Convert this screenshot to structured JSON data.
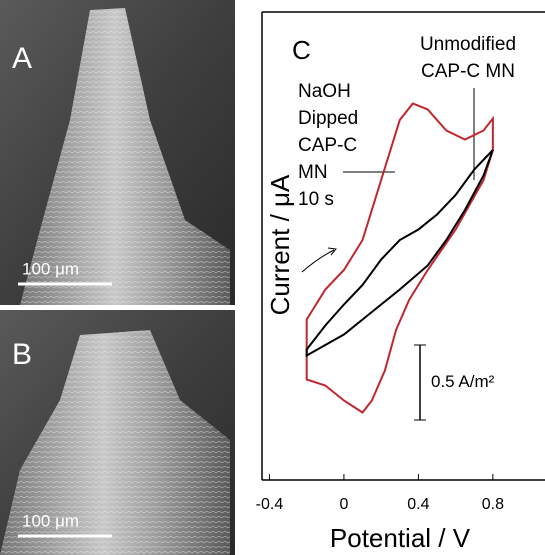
{
  "panels": [
    {
      "label": "A",
      "scale_bar": "100 μm"
    },
    {
      "label": "B",
      "scale_bar": "100 μm"
    }
  ],
  "chart_data": {
    "type": "line",
    "panel_label": "C",
    "xlabel": "Potential / V",
    "ylabel": "Current / μA",
    "xlim": [
      -0.44,
      1.08
    ],
    "xticks": [
      -0.4,
      0,
      0.4,
      0.8
    ],
    "ylim": [
      -2.4,
      0.72
    ],
    "series": [
      {
        "color": "#c0272d",
        "x": [
          -0.2,
          -0.1,
          0,
          0.1,
          0.2,
          0.3,
          0.37,
          0.45,
          0.55,
          0.65,
          0.75,
          0.8,
          0.8,
          0.75,
          0.6,
          0.45,
          0.35,
          0.28,
          0.22,
          0.15,
          0.1,
          0,
          -0.1,
          -0.2
        ],
        "values": [
          -1.33,
          -1.13,
          -1.0,
          -0.8,
          -0.4,
          0,
          0.11,
          0.07,
          -0.07,
          -0.13,
          -0.07,
          0.01,
          -0.2,
          -0.4,
          -0.73,
          -1.0,
          -1.2,
          -1.4,
          -1.67,
          -1.87,
          -1.95,
          -1.87,
          -1.77,
          -1.73
        ]
      },
      {
        "color": "#000000",
        "x": [
          -0.2,
          -0.1,
          0,
          0.1,
          0.2,
          0.3,
          0.4,
          0.5,
          0.6,
          0.7,
          0.8,
          0.75,
          0.65,
          0.55,
          0.45,
          0.3,
          0.2,
          0.1,
          0,
          -0.1,
          -0.2
        ],
        "values": [
          -1.53,
          -1.37,
          -1.23,
          -1.1,
          -0.93,
          -0.8,
          -0.73,
          -0.63,
          -0.5,
          -0.33,
          -0.2,
          -0.37,
          -0.6,
          -0.8,
          -0.97,
          -1.13,
          -1.23,
          -1.33,
          -1.43,
          -1.5,
          -1.57
        ]
      }
    ],
    "annotations": [
      {
        "lines": [
          "NaOH",
          "Dipped",
          "CAP-C",
          "MN",
          "10 s"
        ]
      },
      {
        "lines": [
          "Unmodified",
          "CAP-C MN"
        ]
      }
    ],
    "scale_bar": {
      "value": 0.5,
      "label": "0.5 A/m²"
    }
  }
}
